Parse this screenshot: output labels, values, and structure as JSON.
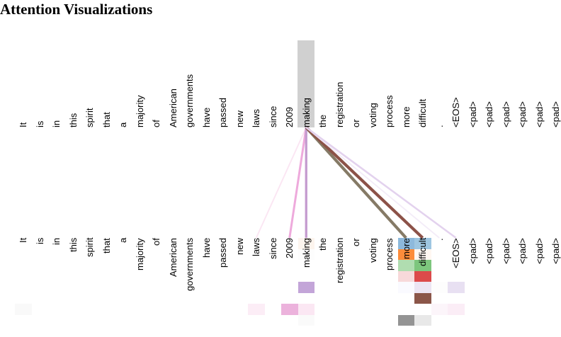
{
  "title": "Attention Visualizations",
  "tokens": [
    "It",
    "is",
    "in",
    "this",
    "spirit",
    "that",
    "a",
    "majority",
    "of",
    "American",
    "governments",
    "have",
    "passed",
    "new",
    "laws",
    "since",
    "2009",
    "making",
    "the",
    "registration",
    "or",
    "voting",
    "process",
    "more",
    "difficult",
    ".",
    "<EOS>",
    "<pad>",
    "<pad>",
    "<pad>",
    "<pad>",
    "<pad>",
    "<pad>"
  ],
  "selected_token_index": 17,
  "attention_lines": [
    {
      "target": 14,
      "color": "#fbe6f3",
      "weight": 0.15
    },
    {
      "target": 16,
      "color": "#eeaadc",
      "weight": 0.5
    },
    {
      "target": 17,
      "color": "#c49bcf",
      "weight": 0.6
    },
    {
      "target": 23,
      "color": "#857a66",
      "weight": 0.9
    },
    {
      "target": 24,
      "color": "#8c5248",
      "weight": 0.9
    },
    {
      "target": 25,
      "color": "#f3ecf8",
      "weight": 0.1
    },
    {
      "target": 26,
      "color": "#e3d2ee",
      "weight": 0.35
    }
  ],
  "head_cells": [
    {
      "col": 0,
      "row": 6,
      "color": "#f9f9f9"
    },
    {
      "col": 14,
      "row": 6,
      "color": "#fcedf6"
    },
    {
      "col": 16,
      "row": 6,
      "color": "#ecb2dc"
    },
    {
      "col": 17,
      "row": 0,
      "color": "#fdf5ee"
    },
    {
      "col": 17,
      "row": 1,
      "color": "#fdfdfd"
    },
    {
      "col": 17,
      "row": 4,
      "color": "#c3a5d8"
    },
    {
      "col": 17,
      "row": 6,
      "color": "#fbe7f3"
    },
    {
      "col": 17,
      "row": 7,
      "color": "#fafafa"
    },
    {
      "col": 23,
      "row": 0,
      "color": "#8db9dc"
    },
    {
      "col": 23,
      "row": 1,
      "color": "#fc8c3b"
    },
    {
      "col": 23,
      "row": 2,
      "color": "#b0ddb0"
    },
    {
      "col": 23,
      "row": 3,
      "color": "#f7d9da"
    },
    {
      "col": 23,
      "row": 4,
      "color": "#fafaff"
    },
    {
      "col": 23,
      "row": 7,
      "color": "#949494"
    },
    {
      "col": 24,
      "row": 0,
      "color": "#9ec6e1"
    },
    {
      "col": 24,
      "row": 1,
      "color": "#fff7f2"
    },
    {
      "col": 24,
      "row": 2,
      "color": "#7dc67d"
    },
    {
      "col": 24,
      "row": 3,
      "color": "#dc4a4a"
    },
    {
      "col": 24,
      "row": 4,
      "color": "#ece5f3"
    },
    {
      "col": 24,
      "row": 5,
      "color": "#8b5649"
    },
    {
      "col": 24,
      "row": 7,
      "color": "#e8e8e8"
    },
    {
      "col": 25,
      "row": 4,
      "color": "#fdfdfd"
    },
    {
      "col": 25,
      "row": 6,
      "color": "#fcf5fa"
    },
    {
      "col": 26,
      "row": 4,
      "color": "#e8e0f2"
    },
    {
      "col": 26,
      "row": 6,
      "color": "#fbedf6"
    }
  ]
}
